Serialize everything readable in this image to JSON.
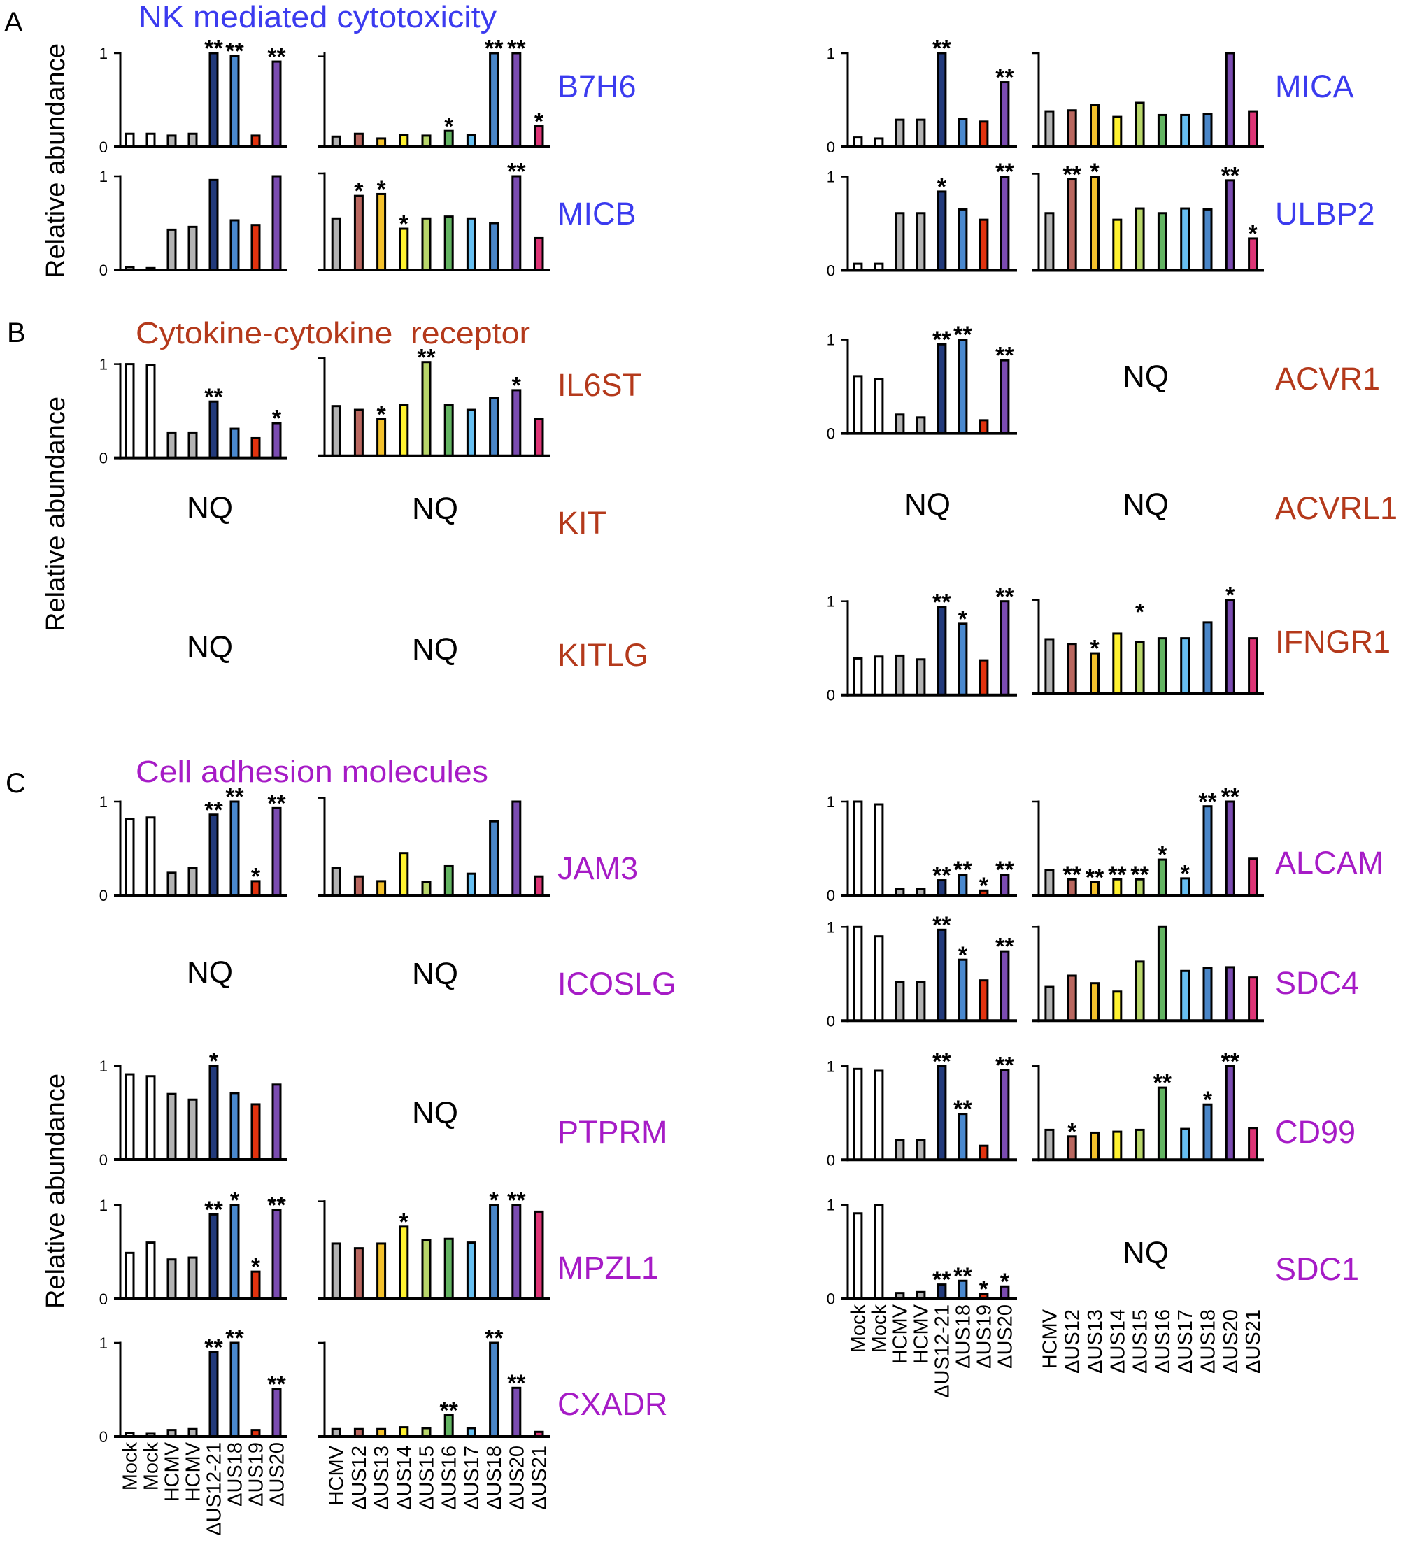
{
  "chart_data": {
    "type": "bar",
    "ylabel": "Relative abundance",
    "ylim": [
      0,
      1
    ],
    "ytick_labels": [
      "0",
      "1"
    ],
    "not_quantified_label": "NQ",
    "category_sets": {
      "infection": {
        "categories": [
          "Mock",
          "Mock",
          "HCMV",
          "HCMV",
          "ΔUS12-21",
          "ΔUS18",
          "ΔUS19",
          "ΔUS20"
        ],
        "colors": [
          "#ffffff",
          "#ffffff",
          "#b3b3b3",
          "#b3b3b3",
          "#223a7b",
          "#4a89cf",
          "#e2330f",
          "#7b4cb1"
        ]
      },
      "deletion": {
        "categories": [
          "HCMV",
          "ΔUS12",
          "ΔUS13",
          "ΔUS14",
          "ΔUS15",
          "ΔUS16",
          "ΔUS17",
          "ΔUS18",
          "ΔUS20",
          "ΔUS21"
        ],
        "colors": [
          "#b3b3b3",
          "#b9675f",
          "#f3c12c",
          "#fff230",
          "#b8d66a",
          "#63b462",
          "#66bff1",
          "#4a86c8",
          "#7b4cb1",
          "#dd3576"
        ]
      }
    },
    "panels": [
      {
        "letter": "A",
        "title": "NK mediated cytotoxicity",
        "color": "#3b3bef",
        "genes": [
          {
            "name": "B7H6",
            "infection": {
              "values": [
                0.14,
                0.14,
                0.12,
                0.14,
                1.0,
                0.97,
                0.12,
                0.91
              ],
              "stars": [
                "",
                "",
                "",
                "",
                "**",
                "**",
                "",
                "**"
              ]
            },
            "deletion": {
              "values": [
                0.11,
                0.14,
                0.09,
                0.13,
                0.12,
                0.17,
                0.13,
                1.0,
                1.0,
                0.22
              ],
              "stars": [
                "",
                "",
                "",
                "",
                "",
                "*",
                "",
                "**",
                "**",
                "*"
              ]
            }
          },
          {
            "name": "MICA",
            "infection": {
              "values": [
                0.1,
                0.09,
                0.29,
                0.29,
                1.0,
                0.3,
                0.27,
                0.69
              ],
              "stars": [
                "",
                "",
                "",
                "",
                "**",
                "",
                "",
                "**"
              ]
            },
            "deletion": {
              "values": [
                0.38,
                0.39,
                0.45,
                0.32,
                0.47,
                0.34,
                0.34,
                0.35,
                1.0,
                0.38
              ],
              "stars": [
                "",
                "",
                "",
                "",
                "",
                "",
                "",
                "",
                "",
                ""
              ]
            }
          },
          {
            "name": "MICB",
            "infection": {
              "values": [
                0.03,
                0.02,
                0.43,
                0.46,
                0.96,
                0.53,
                0.48,
                1.0
              ],
              "stars": [
                "",
                "",
                "",
                "",
                "",
                "",
                "",
                ""
              ]
            },
            "deletion": {
              "values": [
                0.55,
                0.79,
                0.81,
                0.44,
                0.55,
                0.57,
                0.55,
                0.5,
                1.0,
                0.34
              ],
              "stars": [
                "",
                "*",
                "*",
                "*",
                "",
                "",
                "",
                "",
                "**",
                ""
              ]
            }
          },
          {
            "name": "ULBP2",
            "infection": {
              "values": [
                0.07,
                0.07,
                0.61,
                0.61,
                0.84,
                0.65,
                0.54,
                1.0
              ],
              "stars": [
                "",
                "",
                "",
                "",
                "*",
                "",
                "",
                "**"
              ]
            },
            "deletion": {
              "values": [
                0.61,
                0.97,
                1.0,
                0.54,
                0.66,
                0.61,
                0.66,
                0.65,
                0.96,
                0.34
              ],
              "stars": [
                "",
                "**",
                "*",
                "",
                "",
                "",
                "",
                "",
                "**",
                "*"
              ]
            }
          }
        ]
      },
      {
        "letter": "B",
        "title": "Cytokine-cytokine  receptor",
        "color": "#b4391b",
        "genes": [
          {
            "name": "IL6ST",
            "infection": {
              "values": [
                1.0,
                0.99,
                0.27,
                0.27,
                0.6,
                0.31,
                0.21,
                0.37
              ],
              "stars": [
                "",
                "",
                "",
                "",
                "**",
                "",
                "",
                "*"
              ]
            },
            "deletion": {
              "values": [
                0.53,
                0.49,
                0.39,
                0.54,
                1.0,
                0.54,
                0.49,
                0.62,
                0.7,
                0.39
              ],
              "stars": [
                "",
                "",
                "*",
                "",
                "**",
                "",
                "",
                "",
                "*",
                ""
              ]
            }
          },
          {
            "name": "ACVR1",
            "infection": {
              "values": [
                0.61,
                0.58,
                0.2,
                0.17,
                0.95,
                1.0,
                0.14,
                0.78
              ],
              "stars": [
                "",
                "",
                "",
                "",
                "**",
                "**",
                "",
                "**"
              ]
            },
            "deletion": {
              "nq": true
            }
          },
          {
            "name": "KIT",
            "infection": {
              "nq": true
            },
            "deletion": {
              "nq": true
            }
          },
          {
            "name": "ACVRL1",
            "infection": {
              "nq": true
            },
            "deletion": {
              "nq": true
            }
          },
          {
            "name": "KITLG",
            "infection": {
              "nq": true
            },
            "deletion": {
              "nq": true
            }
          },
          {
            "name": "IFNGR1",
            "infection": {
              "values": [
                0.39,
                0.41,
                0.42,
                0.38,
                0.94,
                0.76,
                0.37,
                1.0
              ],
              "stars": [
                "",
                "",
                "",
                "",
                "**",
                "*",
                "",
                "**"
              ]
            },
            "deletion": {
              "values": [
                0.58,
                0.53,
                0.43,
                0.64,
                0.55,
                0.59,
                0.59,
                0.76,
                1.0,
                0.59
              ],
              "stars": [
                "",
                "",
                "*",
                "",
                "*",
                "",
                "",
                "",
                "*",
                ""
              ],
              "star_levels": {
                "4": 0.82
              }
            }
          }
        ]
      },
      {
        "letter": "C",
        "title": "Cell adhesion molecules",
        "color": "#a61bc6",
        "genes": [
          {
            "name": "JAM3",
            "infection": {
              "values": [
                0.81,
                0.83,
                0.24,
                0.29,
                0.86,
                1.0,
                0.15,
                0.93
              ],
              "stars": [
                "",
                "",
                "",
                "",
                "**",
                "**",
                "*",
                "**"
              ]
            },
            "deletion": {
              "values": [
                0.29,
                0.2,
                0.15,
                0.45,
                0.14,
                0.31,
                0.23,
                0.79,
                1.0,
                0.2
              ],
              "stars": [
                "",
                "",
                "",
                "",
                "",
                "",
                "",
                "",
                "",
                ""
              ]
            }
          },
          {
            "name": "ALCAM",
            "infection": {
              "values": [
                1.0,
                0.97,
                0.07,
                0.07,
                0.16,
                0.22,
                0.05,
                0.22
              ],
              "stars": [
                "",
                "",
                "",
                "",
                "**",
                "**",
                "*",
                "**"
              ]
            },
            "deletion": {
              "values": [
                0.27,
                0.17,
                0.14,
                0.17,
                0.17,
                0.38,
                0.18,
                0.95,
                1.0,
                0.39
              ],
              "stars": [
                "",
                "**",
                "**",
                "**",
                "**",
                "*",
                "*",
                "**",
                "**",
                ""
              ]
            }
          },
          {
            "name": "ICOSLG",
            "infection": {
              "nq": true
            },
            "deletion": {
              "nq": true
            }
          },
          {
            "name": "SDC4",
            "infection": {
              "values": [
                1.0,
                0.9,
                0.41,
                0.41,
                0.97,
                0.65,
                0.43,
                0.74
              ],
              "stars": [
                "",
                "",
                "",
                "",
                "**",
                "*",
                "",
                "**"
              ]
            },
            "deletion": {
              "values": [
                0.36,
                0.48,
                0.4,
                0.31,
                0.63,
                1.0,
                0.53,
                0.56,
                0.57,
                0.46
              ],
              "stars": [
                "",
                "",
                "",
                "",
                "",
                "",
                "",
                "",
                "",
                ""
              ]
            }
          },
          {
            "name": "PTPRM",
            "infection": {
              "values": [
                0.91,
                0.89,
                0.7,
                0.64,
                1.0,
                0.71,
                0.59,
                0.8
              ],
              "stars": [
                "",
                "",
                "",
                "",
                "*",
                "",
                "",
                ""
              ]
            },
            "deletion": {
              "nq": true
            }
          },
          {
            "name": "CD99",
            "infection": {
              "values": [
                0.97,
                0.95,
                0.21,
                0.21,
                1.0,
                0.49,
                0.15,
                0.96
              ],
              "stars": [
                "",
                "",
                "",
                "",
                "**",
                "**",
                "",
                "**"
              ]
            },
            "deletion": {
              "values": [
                0.32,
                0.25,
                0.29,
                0.3,
                0.32,
                0.77,
                0.33,
                0.59,
                1.0,
                0.34
              ],
              "stars": [
                "",
                "*",
                "",
                "",
                "",
                "**",
                "",
                "*",
                "**",
                ""
              ]
            }
          },
          {
            "name": "MPZL1",
            "infection": {
              "values": [
                0.49,
                0.6,
                0.42,
                0.44,
                0.9,
                1.0,
                0.29,
                0.95
              ],
              "stars": [
                "",
                "",
                "",
                "",
                "**",
                "*",
                "*",
                "**"
              ]
            },
            "deletion": {
              "values": [
                0.59,
                0.54,
                0.59,
                0.77,
                0.63,
                0.64,
                0.6,
                1.0,
                1.0,
                0.93
              ],
              "stars": [
                "",
                "",
                "",
                "*",
                "",
                "",
                "",
                "*",
                "**",
                ""
              ]
            }
          },
          {
            "name": "SDC1",
            "infection": {
              "values": [
                0.91,
                1.0,
                0.06,
                0.07,
                0.15,
                0.19,
                0.05,
                0.13
              ],
              "stars": [
                "",
                "",
                "",
                "",
                "**",
                "**",
                "*",
                "*"
              ]
            },
            "deletion": {
              "nq": true
            }
          },
          {
            "name": "CXADR",
            "infection": {
              "values": [
                0.04,
                0.03,
                0.07,
                0.08,
                0.9,
                1.0,
                0.07,
                0.51
              ],
              "stars": [
                "",
                "",
                "",
                "",
                "**",
                "**",
                "",
                "**"
              ]
            },
            "deletion": {
              "values": [
                0.08,
                0.08,
                0.08,
                0.1,
                0.09,
                0.23,
                0.09,
                1.0,
                0.52,
                0.05
              ],
              "stars": [
                "",
                "",
                "",
                "",
                "",
                "**",
                "",
                "**",
                "**",
                ""
              ]
            }
          }
        ]
      }
    ]
  }
}
